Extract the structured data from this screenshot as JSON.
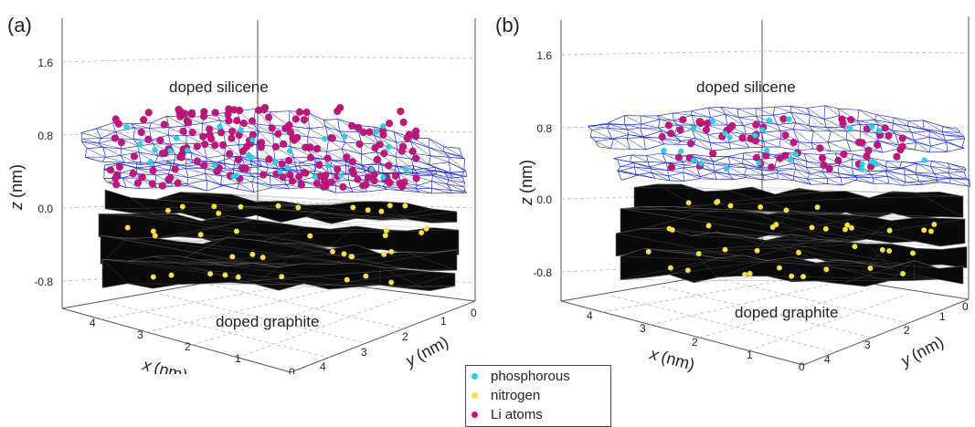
{
  "chart_data": [
    {
      "type": "surface3d-scatter",
      "panel_label": "(a)",
      "zlabel_var": "z",
      "zlabel_unit": "(nm)",
      "xlabel_var": "x",
      "xlabel_unit": "(nm)",
      "ylabel_var": "y",
      "ylabel_unit": "(nm)",
      "z_ticks": [
        "1.6",
        "0.8",
        "0.0",
        "-0.8"
      ],
      "x_ticks": [
        "4",
        "3",
        "2",
        "1",
        "0"
      ],
      "y_ticks": [
        "4",
        "3",
        "2",
        "1",
        "0"
      ],
      "annotations": [
        "doped silicene",
        "doped graphite"
      ],
      "series": [
        {
          "name": "phosphorous",
          "color": "#22d3ee",
          "count": 30
        },
        {
          "name": "nitrogen",
          "color": "#fde047",
          "count": 40
        },
        {
          "name": "Li atoms",
          "color": "#c0157a",
          "count": 180
        }
      ]
    },
    {
      "type": "surface3d-scatter",
      "panel_label": "(b)",
      "zlabel_var": "z",
      "zlabel_unit": "(nm)",
      "xlabel_var": "x",
      "xlabel_unit": "(nm)",
      "ylabel_var": "y",
      "ylabel_unit": "(nm)",
      "z_ticks": [
        "1.6",
        "0.8",
        "0.0",
        "-0.8"
      ],
      "x_ticks": [
        "4",
        "3",
        "2",
        "1",
        "0"
      ],
      "y_ticks": [
        "4",
        "3",
        "2",
        "1",
        "0"
      ],
      "annotations": [
        "doped silicene",
        "doped graphite"
      ],
      "series": [
        {
          "name": "phosphorous",
          "color": "#22d3ee",
          "count": 25
        },
        {
          "name": "nitrogen",
          "color": "#fde047",
          "count": 40
        },
        {
          "name": "Li atoms",
          "color": "#c0157a",
          "count": 60
        }
      ]
    }
  ],
  "legend": {
    "items": [
      {
        "label": "phosphorous",
        "color": "#22d3ee"
      },
      {
        "label": "nitrogen",
        "color": "#fde047"
      },
      {
        "label": "Li atoms",
        "color": "#c0157a"
      }
    ]
  },
  "colors": {
    "mesh": "#1a2ed8",
    "graphite": "#0a0a0a",
    "axis": "#444444",
    "grid": "#bbbbbb"
  }
}
